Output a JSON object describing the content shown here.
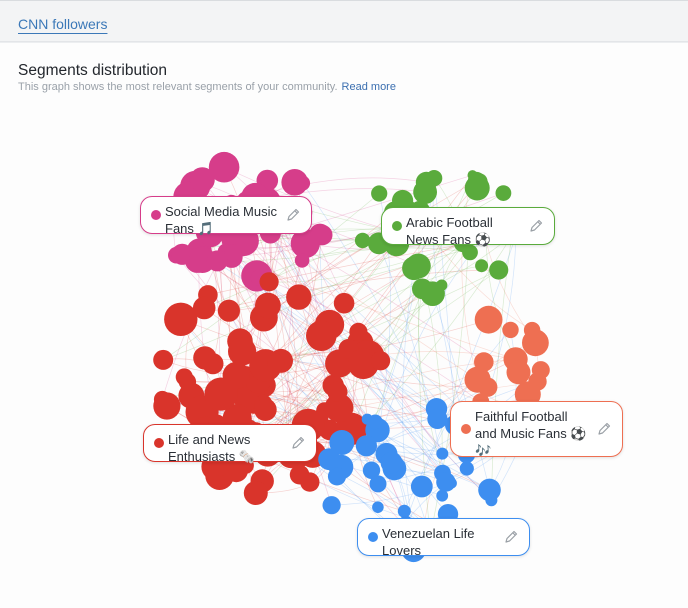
{
  "header": {
    "breadcrumb": "CNN followers"
  },
  "section": {
    "title": "Segments distribution",
    "subtitle": "This graph shows the most relevant segments of your community.",
    "read_more": "Read more"
  },
  "segments": [
    {
      "id": "social",
      "label": "Social Media Music Fans 🎵",
      "color": "#d63d8a"
    },
    {
      "id": "arabic",
      "label": "Arabic Football News Fans ⚽",
      "color": "#5aab3c"
    },
    {
      "id": "faithful",
      "label": "Faithful Football and Music Fans ⚽ 🎶",
      "color": "#ee6f52"
    },
    {
      "id": "life",
      "label": "Life and News Enthusiasts 🗞️",
      "color": "#d9342b"
    },
    {
      "id": "venezuelan",
      "label": "Venezuelan Life Lovers",
      "color": "#3d8ef0"
    }
  ]
}
